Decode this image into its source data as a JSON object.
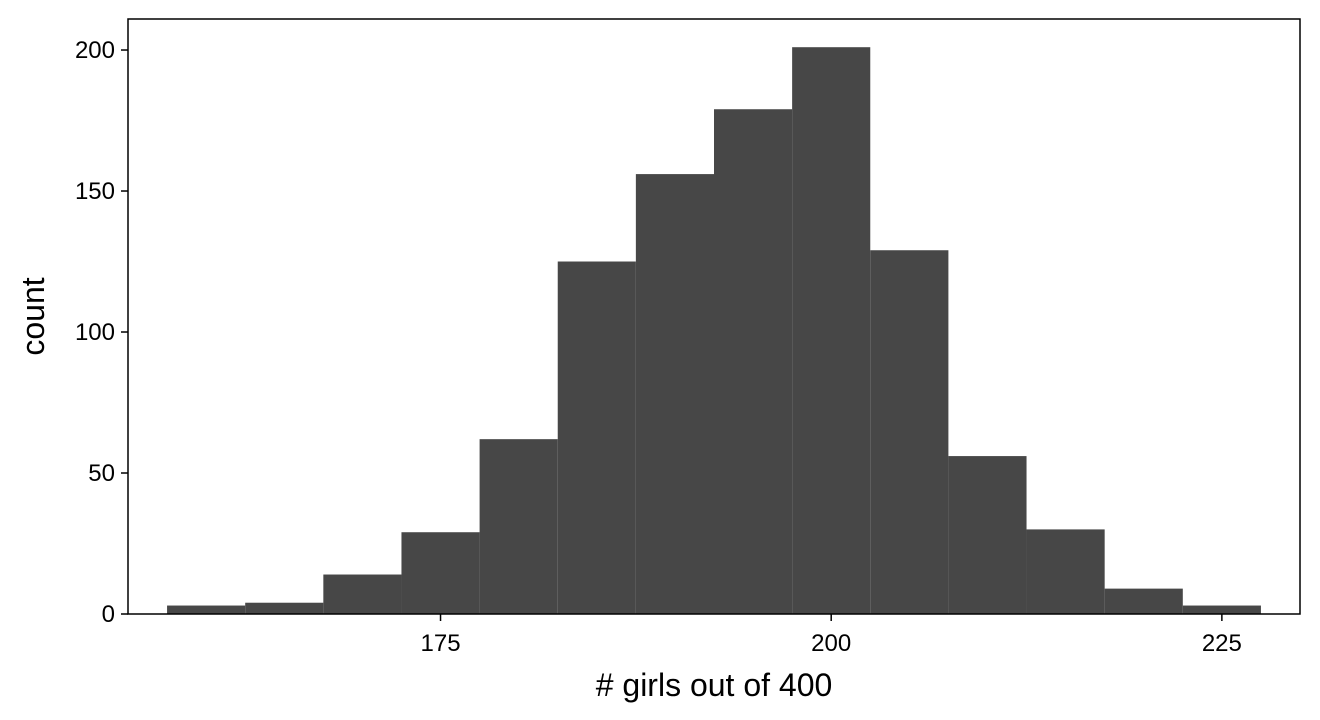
{
  "chart_data": {
    "type": "bar",
    "title": "",
    "xlabel": "# girls out of 400",
    "ylabel": "count",
    "xlim": [
      155,
      230
    ],
    "ylim": [
      0,
      211
    ],
    "xticks": [
      175,
      200,
      225
    ],
    "yticks": [
      0,
      50,
      100,
      150,
      200
    ],
    "grid": false,
    "bar_color": "#474747",
    "bins": [
      {
        "x0": 157.5,
        "x1": 162.5,
        "count": 3
      },
      {
        "x0": 162.5,
        "x1": 167.5,
        "count": 4
      },
      {
        "x0": 167.5,
        "x1": 172.5,
        "count": 14
      },
      {
        "x0": 172.5,
        "x1": 177.5,
        "count": 29
      },
      {
        "x0": 177.5,
        "x1": 182.5,
        "count": 62
      },
      {
        "x0": 182.5,
        "x1": 187.5,
        "count": 125
      },
      {
        "x0": 187.5,
        "x1": 192.5,
        "count": 156
      },
      {
        "x0": 192.5,
        "x1": 197.5,
        "count": 179
      },
      {
        "x0": 197.5,
        "x1": 202.5,
        "count": 201
      },
      {
        "x0": 202.5,
        "x1": 207.5,
        "count": 129
      },
      {
        "x0": 207.5,
        "x1": 212.5,
        "count": 56
      },
      {
        "x0": 212.5,
        "x1": 217.5,
        "count": 30
      },
      {
        "x0": 217.5,
        "x1": 222.5,
        "count": 9
      },
      {
        "x0": 222.5,
        "x1": 227.5,
        "count": 3
      }
    ]
  }
}
